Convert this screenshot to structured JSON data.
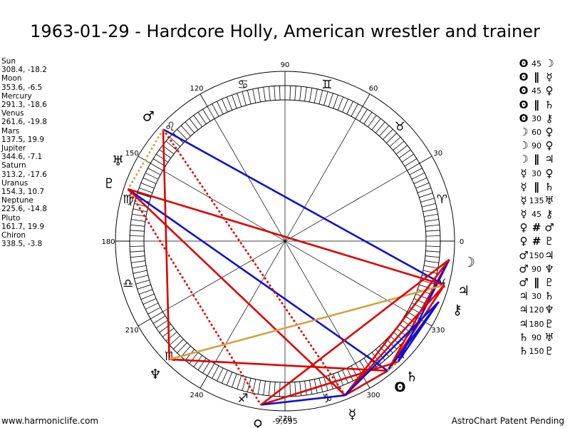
{
  "title": "1963-01-29 - Hardcore Holly, American wrestler and trainer",
  "planets": [
    {
      "name": "Sun",
      "coords": "308.4, -18.2"
    },
    {
      "name": "Moon",
      "coords": "353.6, -6.5"
    },
    {
      "name": "Mercury",
      "coords": "291.3, -18.6"
    },
    {
      "name": "Venus",
      "coords": "261.6, -19.8"
    },
    {
      "name": "Mars",
      "coords": "137.5, 19.9"
    },
    {
      "name": "Jupiter",
      "coords": "344.6, -7.1"
    },
    {
      "name": "Saturn",
      "coords": "313.2, -17.6"
    },
    {
      "name": "Uranus",
      "coords": "154.3, 10.7"
    },
    {
      "name": "Neptune",
      "coords": "225.6, -14.8"
    },
    {
      "name": "Pluto",
      "coords": "161.7, 19.9"
    },
    {
      "name": "Chiron",
      "coords": "338.5, -3.8"
    }
  ],
  "glyphs": {
    "Sun": "ʘ",
    "Moon": "☽",
    "Mercury": "☿",
    "Venus": "♀",
    "Mars": "♂",
    "Jupiter": "♃",
    "Saturn": "♄",
    "Uranus": "♅",
    "Neptune": "♆",
    "Pluto": "♇",
    "Chiron": "⚷"
  },
  "aspect_symbols": {
    "parallel": "∥",
    "antiparallel": "#"
  },
  "aspects": [
    {
      "p1": "Sun",
      "type": "45",
      "p2": "Moon"
    },
    {
      "p1": "Sun",
      "type": "parallel",
      "p2": "Mercury"
    },
    {
      "p1": "Sun",
      "type": "45",
      "p2": "Venus"
    },
    {
      "p1": "Sun",
      "type": "parallel",
      "p2": "Saturn"
    },
    {
      "p1": "Sun",
      "type": "30",
      "p2": "Chiron"
    },
    {
      "p1": "Moon",
      "type": "60",
      "p2": "Venus"
    },
    {
      "p1": "Moon",
      "type": "90",
      "p2": "Venus"
    },
    {
      "p1": "Moon",
      "type": "parallel",
      "p2": "Jupiter"
    },
    {
      "p1": "Mercury",
      "type": "30",
      "p2": "Venus"
    },
    {
      "p1": "Mercury",
      "type": "parallel",
      "p2": "Saturn"
    },
    {
      "p1": "Mercury",
      "type": "135",
      "p2": "Uranus"
    },
    {
      "p1": "Mercury",
      "type": "45",
      "p2": "Chiron"
    },
    {
      "p1": "Venus",
      "type": "antiparallel",
      "p2": "Mars"
    },
    {
      "p1": "Venus",
      "type": "antiparallel",
      "p2": "Pluto"
    },
    {
      "p1": "Mars",
      "type": "150",
      "p2": "Jupiter"
    },
    {
      "p1": "Mars",
      "type": "90",
      "p2": "Neptune"
    },
    {
      "p1": "Mars",
      "type": "parallel",
      "p2": "Pluto"
    },
    {
      "p1": "Jupiter",
      "type": "30",
      "p2": "Saturn"
    },
    {
      "p1": "Jupiter",
      "type": "120",
      "p2": "Neptune"
    },
    {
      "p1": "Jupiter",
      "type": "180",
      "p2": "Pluto"
    },
    {
      "p1": "Saturn",
      "type": "90",
      "p2": "Uranus"
    },
    {
      "p1": "Saturn",
      "type": "150",
      "p2": "Pluto"
    }
  ],
  "degree_labels": [
    "0",
    "30",
    "60",
    "90",
    "120",
    "150",
    "180",
    "210",
    "240",
    "270",
    "300",
    "330"
  ],
  "zodiac": [
    {
      "name": "aries",
      "glyph": "♈",
      "lon": 15
    },
    {
      "name": "taurus",
      "glyph": "♉",
      "lon": 45
    },
    {
      "name": "gemini",
      "glyph": "♊",
      "lon": 75
    },
    {
      "name": "cancer",
      "glyph": "♋",
      "lon": 105
    },
    {
      "name": "leo",
      "glyph": "♌",
      "lon": 135
    },
    {
      "name": "virgo",
      "glyph": "♍",
      "lon": 165
    },
    {
      "name": "libra",
      "glyph": "♎",
      "lon": 195
    },
    {
      "name": "scorpio",
      "glyph": "♏",
      "lon": 225
    },
    {
      "name": "sagittarius",
      "glyph": "♐",
      "lon": 255
    },
    {
      "name": "capricorn",
      "glyph": "♑",
      "lon": 285
    },
    {
      "name": "aquarius",
      "glyph": "♒",
      "lon": 315
    },
    {
      "name": "pisces",
      "glyph": "♓",
      "lon": 345
    }
  ],
  "chart_points": [
    {
      "name": "Sun",
      "lon": 308.4,
      "dec": -18.2
    },
    {
      "name": "Moon",
      "lon": 353.6,
      "dec": -6.5
    },
    {
      "name": "Mercury",
      "lon": 291.3,
      "dec": -18.6
    },
    {
      "name": "Venus",
      "lon": 261.6,
      "dec": -19.8
    },
    {
      "name": "Mars",
      "lon": 137.5,
      "dec": 19.9
    },
    {
      "name": "Jupiter",
      "lon": 344.6,
      "dec": -7.1
    },
    {
      "name": "Saturn",
      "lon": 313.2,
      "dec": -17.6
    },
    {
      "name": "Uranus",
      "lon": 154.3,
      "dec": 10.7
    },
    {
      "name": "Neptune",
      "lon": 225.6,
      "dec": -14.8
    },
    {
      "name": "Pluto",
      "lon": 161.7,
      "dec": 19.9
    },
    {
      "name": "Chiron",
      "lon": 338.5,
      "dec": -3.8
    }
  ],
  "chart_lines": [
    {
      "a": "Sun",
      "b": "Moon",
      "color": "#e00000",
      "style": "solid"
    },
    {
      "a": "Sun",
      "b": "Jupiter",
      "color": "#e00000",
      "style": "solid"
    },
    {
      "a": "Sun",
      "b": "Mercury",
      "color": "#e00000",
      "style": "solid"
    },
    {
      "a": "Sun",
      "b": "Neptune",
      "color": "#e00000",
      "style": "solid"
    },
    {
      "a": "Sun",
      "b": "Chiron",
      "color": "#1010d0",
      "style": "solid"
    },
    {
      "a": "Sun",
      "b": "Pluto",
      "color": "#1010d0",
      "style": "solid"
    },
    {
      "a": "Saturn",
      "b": "Venus",
      "color": "#e00000",
      "style": "solid"
    },
    {
      "a": "Saturn",
      "b": "Chiron",
      "color": "#1010d0",
      "style": "solid"
    },
    {
      "a": "Saturn",
      "b": "Moon",
      "color": "#1010d0",
      "style": "solid"
    },
    {
      "a": "Mars",
      "b": "Jupiter",
      "color": "#1010d0",
      "style": "solid"
    },
    {
      "a": "Mars",
      "b": "Neptune",
      "color": "#e00000",
      "style": "solid"
    },
    {
      "a": "Mars",
      "b": "Mercury",
      "color": "#e00000",
      "style": "dotted"
    },
    {
      "a": "Mars",
      "b": "Pluto",
      "color": "#d4a040",
      "style": "dotted"
    },
    {
      "a": "Pluto",
      "b": "Jupiter",
      "color": "#e00000",
      "style": "solid"
    },
    {
      "a": "Pluto",
      "b": "Mercury",
      "color": "#e00000",
      "style": "solid"
    },
    {
      "a": "Pluto",
      "b": "Venus",
      "color": "#e00000",
      "style": "dotted"
    },
    {
      "a": "Neptune",
      "b": "Jupiter",
      "color": "#d4a040",
      "style": "solid"
    },
    {
      "a": "Mercury",
      "b": "Venus",
      "color": "#1010d0",
      "style": "solid"
    },
    {
      "a": "Mercury",
      "b": "Moon",
      "color": "#e00000",
      "style": "solid"
    },
    {
      "a": "Mercury",
      "b": "Jupiter",
      "color": "#e00000",
      "style": "solid"
    },
    {
      "a": "Mercury",
      "b": "Chiron",
      "color": "#1010d0",
      "style": "solid"
    },
    {
      "a": "Venus",
      "b": "Moon",
      "color": "#e00000",
      "style": "solid"
    },
    {
      "a": "Sun",
      "b": "Saturn",
      "color": "#d4a040",
      "style": "dotted"
    }
  ],
  "bottom_label": "-9,695",
  "footer_left": "www.harmoniclife.com",
  "footer_right": "AstroChart Patent Pending"
}
